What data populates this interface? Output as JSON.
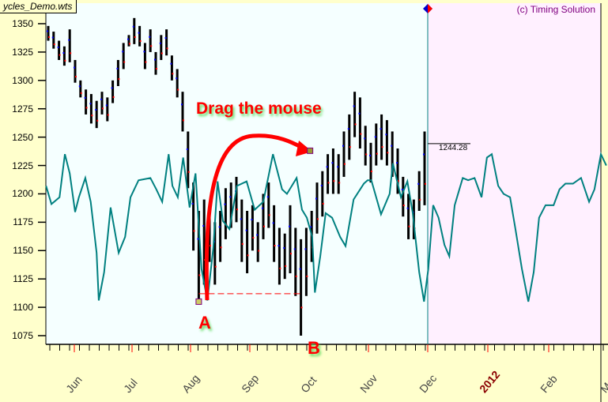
{
  "window": {
    "file_tab": "ycles_Demo.wts",
    "copyright": "(c) Timing Solution"
  },
  "annotations": {
    "drag_label": "Drag the mouse",
    "point_a": "A",
    "point_b": "B",
    "last_price": "1244.28"
  },
  "colors": {
    "price_bar": "#000000",
    "cycle_line": "#008080",
    "arrow": "#ff0000",
    "past_bg": "#f5ffff",
    "future_bg": "#fff0ff"
  },
  "chart_data": {
    "type": "line",
    "title": "",
    "ylim": [
      1068,
      1362
    ],
    "yticks": [
      1350,
      1325,
      1300,
      1275,
      1250,
      1225,
      1200,
      1175,
      1150,
      1125,
      1100,
      1075
    ],
    "xticks": [
      "Jun",
      "Jul",
      "Aug",
      "Sep",
      "Oct",
      "Nov",
      "Dec",
      "2012",
      "Feb",
      "Mar"
    ],
    "grid": false,
    "series": [
      {
        "name": "price",
        "kind": "hl-bars",
        "values": [
          [
            1348,
            1335
          ],
          [
            1343,
            1328
          ],
          [
            1335,
            1318
          ],
          [
            1330,
            1313
          ],
          [
            1345,
            1316
          ],
          [
            1318,
            1298
          ],
          [
            1300,
            1285
          ],
          [
            1292,
            1270
          ],
          [
            1288,
            1262
          ],
          [
            1282,
            1258
          ],
          [
            1290,
            1270
          ],
          [
            1285,
            1264
          ],
          [
            1300,
            1280
          ],
          [
            1318,
            1295
          ],
          [
            1333,
            1310
          ],
          [
            1340,
            1330
          ],
          [
            1355,
            1332
          ],
          [
            1348,
            1330
          ],
          [
            1333,
            1310
          ],
          [
            1345,
            1325
          ],
          [
            1325,
            1305
          ],
          [
            1340,
            1318
          ],
          [
            1345,
            1322
          ],
          [
            1322,
            1300
          ],
          [
            1310,
            1285
          ],
          [
            1290,
            1255
          ],
          [
            1255,
            1205
          ],
          [
            1210,
            1150
          ],
          [
            1185,
            1105
          ],
          [
            1195,
            1120
          ],
          [
            1190,
            1140
          ],
          [
            1175,
            1120
          ],
          [
            1185,
            1140
          ],
          [
            1205,
            1160
          ],
          [
            1210,
            1170
          ],
          [
            1215,
            1175
          ],
          [
            1195,
            1140
          ],
          [
            1185,
            1130
          ],
          [
            1190,
            1150
          ],
          [
            1175,
            1140
          ],
          [
            1200,
            1160
          ],
          [
            1210,
            1170
          ],
          [
            1190,
            1140
          ],
          [
            1170,
            1120
          ],
          [
            1165,
            1125
          ],
          [
            1190,
            1130
          ],
          [
            1170,
            1110
          ],
          [
            1160,
            1075
          ],
          [
            1170,
            1110
          ],
          [
            1185,
            1140
          ],
          [
            1210,
            1165
          ],
          [
            1220,
            1180
          ],
          [
            1235,
            1200
          ],
          [
            1240,
            1200
          ],
          [
            1235,
            1200
          ],
          [
            1255,
            1215
          ],
          [
            1270,
            1230
          ],
          [
            1290,
            1250
          ],
          [
            1285,
            1240
          ],
          [
            1260,
            1225
          ],
          [
            1245,
            1210
          ],
          [
            1262,
            1225
          ],
          [
            1270,
            1230
          ],
          [
            1265,
            1225
          ],
          [
            1255,
            1215
          ],
          [
            1240,
            1200
          ],
          [
            1215,
            1180
          ],
          [
            1200,
            1160
          ],
          [
            1195,
            1160
          ],
          [
            1220,
            1185
          ],
          [
            1255,
            1190
          ]
        ]
      },
      {
        "name": "cycle projection",
        "kind": "line",
        "points": [
          [
            -0.4,
            1207
          ],
          [
            0.6,
            1191
          ],
          [
            2.1,
            1197
          ],
          [
            3.1,
            1235
          ],
          [
            4.0,
            1218
          ],
          [
            5.0,
            1184
          ],
          [
            5.7,
            1197
          ],
          [
            6.9,
            1214
          ],
          [
            7.9,
            1193
          ],
          [
            9.0,
            1148
          ],
          [
            9.4,
            1106
          ],
          [
            10.4,
            1131
          ],
          [
            11.6,
            1188
          ],
          [
            13.1,
            1148
          ],
          [
            14.3,
            1162
          ],
          [
            15.3,
            1197
          ],
          [
            16.8,
            1212
          ],
          [
            19.0,
            1214
          ],
          [
            20.1,
            1204
          ],
          [
            21.2,
            1193
          ],
          [
            22.4,
            1235
          ],
          [
            23.1,
            1207
          ],
          [
            24.1,
            1197
          ],
          [
            25.1,
            1232
          ],
          [
            26.3,
            1188
          ],
          [
            27.4,
            1218
          ],
          [
            28.5,
            1134
          ],
          [
            29.6,
            1106
          ],
          [
            30.7,
            1152
          ],
          [
            31.5,
            1211
          ],
          [
            32.5,
            1176
          ],
          [
            33.7,
            1169
          ],
          [
            35.1,
            1207
          ],
          [
            36.9,
            1211
          ],
          [
            38.4,
            1186
          ],
          [
            40.0,
            1193
          ],
          [
            41.8,
            1235
          ],
          [
            43.5,
            1204
          ],
          [
            44.4,
            1200
          ],
          [
            46.2,
            1214
          ],
          [
            47.2,
            1186
          ],
          [
            48.1,
            1179
          ],
          [
            49.1,
            1162
          ],
          [
            49.6,
            1113
          ],
          [
            50.6,
            1145
          ],
          [
            51.6,
            1183
          ],
          [
            52.8,
            1179
          ],
          [
            54.3,
            1162
          ],
          [
            55.3,
            1154
          ],
          [
            56.8,
            1195
          ],
          [
            58.7,
            1209
          ],
          [
            59.4,
            1212
          ],
          [
            60.1,
            1212
          ],
          [
            61.9,
            1182
          ],
          [
            63.5,
            1200
          ],
          [
            64.1,
            1227
          ],
          [
            65.6,
            1197
          ],
          [
            66.8,
            1211
          ],
          [
            67.8,
            1183
          ],
          [
            69.0,
            1131
          ],
          [
            69.9,
            1105
          ],
          [
            70.7,
            1134
          ],
          [
            71.6,
            1190
          ],
          [
            72.6,
            1179
          ],
          [
            73.7,
            1155
          ],
          [
            74.6,
            1145
          ],
          [
            75.6,
            1190
          ],
          [
            77.1,
            1214
          ],
          [
            78.1,
            1212
          ],
          [
            79.3,
            1214
          ],
          [
            80.6,
            1197
          ],
          [
            81.6,
            1232
          ],
          [
            82.5,
            1235
          ],
          [
            83.7,
            1207
          ],
          [
            84.7,
            1200
          ],
          [
            85.9,
            1197
          ],
          [
            86.9,
            1169
          ],
          [
            88.1,
            1134
          ],
          [
            89.3,
            1105
          ],
          [
            90.3,
            1131
          ],
          [
            91.3,
            1179
          ],
          [
            92.5,
            1190
          ],
          [
            94.0,
            1190
          ],
          [
            95.1,
            1204
          ],
          [
            96.2,
            1209
          ],
          [
            97.6,
            1209
          ],
          [
            99.1,
            1214
          ],
          [
            100.6,
            1193
          ],
          [
            101.6,
            1204
          ],
          [
            102.8,
            1235
          ],
          [
            103.8,
            1225
          ]
        ]
      }
    ],
    "markers": {
      "a": {
        "bar": 28,
        "value": 1105
      },
      "b": {
        "bar": 47,
        "value": 1112
      },
      "drag_target": {
        "bar": 48.7,
        "value": 1238
      },
      "last_price": 1244.28
    }
  }
}
